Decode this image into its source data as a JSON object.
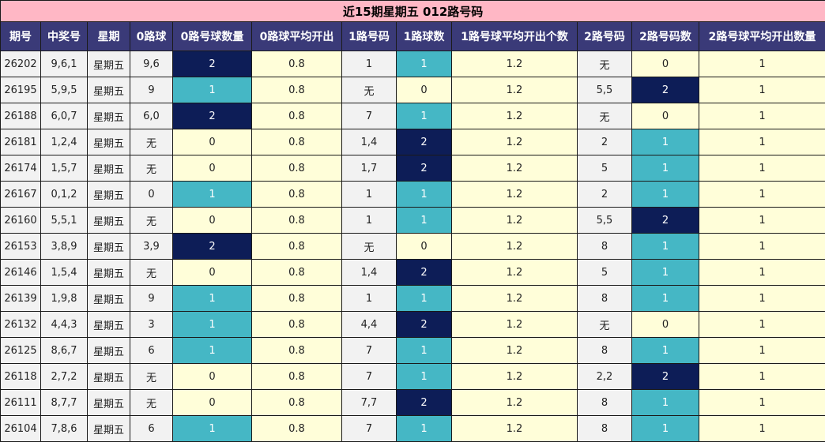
{
  "title": "近15期星期五 012路号码",
  "headers": [
    "期号",
    "中奖号",
    "星期",
    "0路球",
    "0路号球数量",
    "0路球平均开出",
    "1路号码",
    "1路球数",
    "1路号球平均开出个数",
    "2路号码",
    "2路号码数",
    "2路号球平均开出数量"
  ],
  "colors": {
    "level0": "#fffed9",
    "level1": "#45b7c5",
    "level2": "#0d1d57",
    "header": "#3a3a78",
    "title": "#ffb7c5"
  },
  "rows": [
    {
      "issue": "26202",
      "num": "9,6,1",
      "day": "星期五",
      "r0": "9,6",
      "c0": "2",
      "a0": "0.8",
      "r1": "1",
      "c1": "1",
      "a1": "1.2",
      "r2": "无",
      "c2": "0",
      "a2": "1"
    },
    {
      "issue": "26195",
      "num": "5,9,5",
      "day": "星期五",
      "r0": "9",
      "c0": "1",
      "a0": "0.8",
      "r1": "无",
      "c1": "0",
      "a1": "1.2",
      "r2": "5,5",
      "c2": "2",
      "a2": "1"
    },
    {
      "issue": "26188",
      "num": "6,0,7",
      "day": "星期五",
      "r0": "6,0",
      "c0": "2",
      "a0": "0.8",
      "r1": "7",
      "c1": "1",
      "a1": "1.2",
      "r2": "无",
      "c2": "0",
      "a2": "1"
    },
    {
      "issue": "26181",
      "num": "1,2,4",
      "day": "星期五",
      "r0": "无",
      "c0": "0",
      "a0": "0.8",
      "r1": "1,4",
      "c1": "2",
      "a1": "1.2",
      "r2": "2",
      "c2": "1",
      "a2": "1"
    },
    {
      "issue": "26174",
      "num": "1,5,7",
      "day": "星期五",
      "r0": "无",
      "c0": "0",
      "a0": "0.8",
      "r1": "1,7",
      "c1": "2",
      "a1": "1.2",
      "r2": "5",
      "c2": "1",
      "a2": "1"
    },
    {
      "issue": "26167",
      "num": "0,1,2",
      "day": "星期五",
      "r0": "0",
      "c0": "1",
      "a0": "0.8",
      "r1": "1",
      "c1": "1",
      "a1": "1.2",
      "r2": "2",
      "c2": "1",
      "a2": "1"
    },
    {
      "issue": "26160",
      "num": "5,5,1",
      "day": "星期五",
      "r0": "无",
      "c0": "0",
      "a0": "0.8",
      "r1": "1",
      "c1": "1",
      "a1": "1.2",
      "r2": "5,5",
      "c2": "2",
      "a2": "1"
    },
    {
      "issue": "26153",
      "num": "3,8,9",
      "day": "星期五",
      "r0": "3,9",
      "c0": "2",
      "a0": "0.8",
      "r1": "无",
      "c1": "0",
      "a1": "1.2",
      "r2": "8",
      "c2": "1",
      "a2": "1"
    },
    {
      "issue": "26146",
      "num": "1,5,4",
      "day": "星期五",
      "r0": "无",
      "c0": "0",
      "a0": "0.8",
      "r1": "1,4",
      "c1": "2",
      "a1": "1.2",
      "r2": "5",
      "c2": "1",
      "a2": "1"
    },
    {
      "issue": "26139",
      "num": "1,9,8",
      "day": "星期五",
      "r0": "9",
      "c0": "1",
      "a0": "0.8",
      "r1": "1",
      "c1": "1",
      "a1": "1.2",
      "r2": "8",
      "c2": "1",
      "a2": "1"
    },
    {
      "issue": "26132",
      "num": "4,4,3",
      "day": "星期五",
      "r0": "3",
      "c0": "1",
      "a0": "0.8",
      "r1": "4,4",
      "c1": "2",
      "a1": "1.2",
      "r2": "无",
      "c2": "0",
      "a2": "1"
    },
    {
      "issue": "26125",
      "num": "8,6,7",
      "day": "星期五",
      "r0": "6",
      "c0": "1",
      "a0": "0.8",
      "r1": "7",
      "c1": "1",
      "a1": "1.2",
      "r2": "8",
      "c2": "1",
      "a2": "1"
    },
    {
      "issue": "26118",
      "num": "2,7,2",
      "day": "星期五",
      "r0": "无",
      "c0": "0",
      "a0": "0.8",
      "r1": "7",
      "c1": "1",
      "a1": "1.2",
      "r2": "2,2",
      "c2": "2",
      "a2": "1"
    },
    {
      "issue": "26111",
      "num": "8,7,7",
      "day": "星期五",
      "r0": "无",
      "c0": "0",
      "a0": "0.8",
      "r1": "7,7",
      "c1": "2",
      "a1": "1.2",
      "r2": "8",
      "c2": "1",
      "a2": "1"
    },
    {
      "issue": "26104",
      "num": "7,8,6",
      "day": "星期五",
      "r0": "6",
      "c0": "1",
      "a0": "0.8",
      "r1": "7",
      "c1": "1",
      "a1": "1.2",
      "r2": "8",
      "c2": "1",
      "a2": "1"
    }
  ]
}
